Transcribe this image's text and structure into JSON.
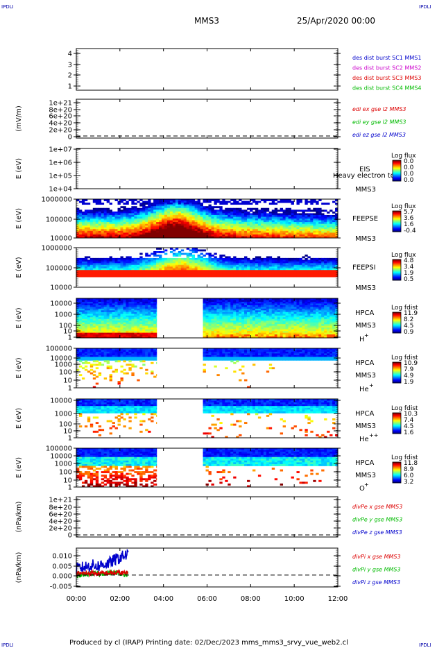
{
  "corner_tags": {
    "top_left": "IPDLI",
    "top_right": "IPDLI",
    "bottom_left": "IPDLI",
    "bottom_right": "IPDLI"
  },
  "header": {
    "title": "MMS3",
    "date": "25/Apr/2020 00:00"
  },
  "footer": {
    "text": "Produced by cl (IRAP)   Printing date: 02/Dec/2023   mms_mms3_srvy_vue_web2.cl"
  },
  "colors": {
    "mms1": "#0000cc",
    "mms2": "#cc00cc",
    "mms3": "#dd0000",
    "mms4": "#00bb00",
    "x_comp": "#dd0000",
    "y_comp": "#00bb00",
    "z_comp": "#0000cc"
  },
  "colormap": "rainbow-jet",
  "chart_data": [
    {
      "id": "p1",
      "type": "line",
      "y_ticks": [
        "4",
        "3",
        "2",
        "1"
      ],
      "legend": [
        {
          "label": "des dist burst SC1 MMS1",
          "color": "#0000cc"
        },
        {
          "label": "des dist burst SC2 MMS2",
          "color": "#cc00cc"
        },
        {
          "label": "des dist burst SC3 MMS3",
          "color": "#dd0000"
        },
        {
          "label": "des dist burst SC4 MMS4",
          "color": "#00bb00"
        }
      ]
    },
    {
      "id": "p2",
      "type": "line",
      "ylabel": "(mV/m)",
      "y_ticks": [
        "1e+21",
        "8e+20",
        "6e+20",
        "4e+20",
        "2e+20",
        "0"
      ],
      "legend": [
        {
          "label": "edi ex gse l2 MMS3",
          "color": "#dd0000"
        },
        {
          "label": "edi ey gse l2 MMS3",
          "color": "#00bb00"
        },
        {
          "label": "edi ez gse l2 MMS3",
          "color": "#0000cc"
        }
      ]
    },
    {
      "id": "p3",
      "type": "heatmap",
      "ylabel": "E (eV)",
      "y_ticks": [
        "1e+07",
        "1e+06",
        "1e+05",
        "1e+04"
      ],
      "side_labels": [
        "EIS",
        "MMS3"
      ],
      "overlay_text": "Heavy electron to",
      "colorbar": {
        "title": "Log flux",
        "ticks": [
          "0.0",
          "0.0",
          "0.0",
          "0.0"
        ]
      }
    },
    {
      "id": "p4",
      "type": "heatmap",
      "ylabel": "E (eV)",
      "y_ticks": [
        "1000000",
        "100000",
        "10000"
      ],
      "side_labels": [
        "FEEPSE",
        "MMS3"
      ],
      "colorbar": {
        "title": "Log flux",
        "ticks": [
          "5.7",
          "3.6",
          "1.6",
          "-0.4"
        ]
      }
    },
    {
      "id": "p5",
      "type": "heatmap",
      "ylabel": "E (eV)",
      "y_ticks": [
        "1000000",
        "100000",
        "10000"
      ],
      "side_labels": [
        "FEEPSI",
        "MMS3"
      ],
      "colorbar": {
        "title": "Log flux",
        "ticks": [
          "4.8",
          "3.4",
          "1.9",
          "0.5"
        ]
      }
    },
    {
      "id": "p6",
      "type": "heatmap",
      "ylabel": "E (eV)",
      "y_ticks": [
        "10000",
        "1000",
        "100",
        "10",
        "1"
      ],
      "side_labels": [
        "HPCA",
        "MMS3"
      ],
      "species": "H",
      "charge": "+",
      "colorbar": {
        "title": "Log fdist",
        "ticks": [
          "11.9",
          "8.2",
          "4.5",
          "0.9"
        ]
      }
    },
    {
      "id": "p7",
      "type": "heatmap",
      "ylabel": "E (eV)",
      "y_ticks": [
        "100000",
        "10000",
        "1000",
        "100",
        "10",
        "1"
      ],
      "side_labels": [
        "HPCA",
        "MMS3"
      ],
      "species": "He",
      "charge": "+",
      "colorbar": {
        "title": "Log fdist",
        "ticks": [
          "10.9",
          "7.9",
          "4.9",
          "1.9"
        ]
      }
    },
    {
      "id": "p8",
      "type": "heatmap",
      "ylabel": "E (eV)",
      "y_ticks": [
        "10000",
        "1000",
        "100",
        "10",
        "1"
      ],
      "side_labels": [
        "HPCA",
        "MMS3"
      ],
      "species": "He",
      "charge": "++",
      "colorbar": {
        "title": "Log fdist",
        "ticks": [
          "10.3",
          "7.4",
          "4.5",
          "1.6"
        ]
      }
    },
    {
      "id": "p9",
      "type": "heatmap",
      "ylabel": "E (eV)",
      "y_ticks": [
        "100000",
        "10000",
        "1000",
        "100",
        "10",
        "1"
      ],
      "side_labels": [
        "HPCA",
        "MMS3"
      ],
      "species": "O",
      "charge": "+",
      "colorbar": {
        "title": "Log fdist",
        "ticks": [
          "11.8",
          "8.9",
          "6.0",
          "3.2"
        ]
      }
    },
    {
      "id": "p10",
      "type": "line",
      "ylabel": "(nPa/km)",
      "y_ticks": [
        "1e+21",
        "8e+20",
        "6e+20",
        "4e+20",
        "2e+20",
        "0"
      ],
      "legend": [
        {
          "label": "divPe x gse MMS3",
          "color": "#dd0000"
        },
        {
          "label": "divPe y gse MMS3",
          "color": "#00bb00"
        },
        {
          "label": "divPe z gse MMS3",
          "color": "#0000cc"
        }
      ]
    },
    {
      "id": "p11",
      "type": "line",
      "ylabel": "(nPa/km)",
      "y_ticks": [
        "0.010",
        "0.005",
        "0.000",
        "-0.005"
      ],
      "ylim": [
        -0.0055,
        0.0125
      ],
      "x_hours": [
        0.0,
        0.25,
        0.5,
        0.75,
        1.0,
        1.25,
        1.5,
        1.75,
        2.0,
        2.2,
        2.4
      ],
      "series": [
        {
          "name": "divPi z",
          "color": "#0000cc",
          "values": [
            0.003,
            0.0035,
            0.004,
            0.0045,
            0.0042,
            0.005,
            0.0055,
            0.007,
            0.008,
            0.009,
            0.0095
          ]
        },
        {
          "name": "divPi y",
          "color": "#00bb00",
          "values": [
            -0.0003,
            0.0,
            0.0005,
            0.0008,
            0.0004,
            0.0009,
            0.001,
            0.001,
            0.0011,
            0.0005,
            0.0003
          ]
        },
        {
          "name": "divPi x",
          "color": "#dd0000",
          "values": [
            0.0006,
            0.0007,
            0.0008,
            0.0009,
            0.0007,
            0.0008,
            0.0009,
            0.001,
            0.0011,
            0.0009,
            0.0007
          ]
        }
      ],
      "legend": [
        {
          "label": "divPi x gse MMS3",
          "color": "#dd0000"
        },
        {
          "label": "divPi y gse MMS3",
          "color": "#00bb00"
        },
        {
          "label": "divPi z gse MMS3",
          "color": "#0000cc"
        }
      ]
    }
  ],
  "x_axis": {
    "ticks": [
      "00:00",
      "02:00",
      "04:00",
      "06:00",
      "08:00",
      "10:00",
      "12:00"
    ],
    "range_hours": [
      0,
      12
    ]
  },
  "hpca_gap_hours": [
    3.7,
    5.8
  ]
}
